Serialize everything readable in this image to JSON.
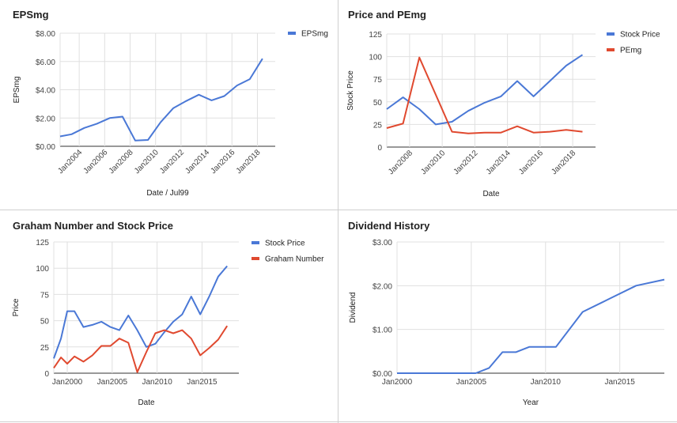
{
  "chart_data": [
    {
      "type": "line",
      "title": "EPSmg",
      "xlabel": "Date / Jul99",
      "ylabel": "EPSmg",
      "x_ticks": [
        "Jan2004",
        "Jan2006",
        "Jan2008",
        "Jan2010",
        "Jan2012",
        "Jan2014",
        "Jan2016",
        "Jan2018"
      ],
      "y_ticks": [
        "$0.00",
        "$2.00",
        "$4.00",
        "$6.00",
        "$8.00"
      ],
      "xlim": [
        2002.5,
        2019.4
      ],
      "ylim": [
        0,
        8
      ],
      "legend": "top-right",
      "colors": {
        "EPSmg": "#4a78d6"
      },
      "series": [
        {
          "name": "EPSmg",
          "color": "#4a78d6",
          "points": [
            [
              2002.5,
              0.7
            ],
            [
              2003.4,
              0.85
            ],
            [
              2004.4,
              1.3
            ],
            [
              2005.4,
              1.6
            ],
            [
              2006.4,
              2.0
            ],
            [
              2007.4,
              2.1
            ],
            [
              2008.4,
              0.4
            ],
            [
              2009.4,
              0.45
            ],
            [
              2010.4,
              1.7
            ],
            [
              2011.4,
              2.7
            ],
            [
              2012.4,
              3.2
            ],
            [
              2013.4,
              3.65
            ],
            [
              2014.4,
              3.25
            ],
            [
              2015.4,
              3.55
            ],
            [
              2016.4,
              4.3
            ],
            [
              2017.4,
              4.75
            ],
            [
              2018.4,
              6.2
            ]
          ]
        }
      ]
    },
    {
      "type": "line",
      "title": "Price and PEmg",
      "xlabel": "Date",
      "ylabel": "Stock Price",
      "x_ticks": [
        "Jan2008",
        "Jan2010",
        "Jan2012",
        "Jan2014",
        "Jan2016",
        "Jan2018"
      ],
      "y_ticks": [
        "0",
        "25",
        "50",
        "75",
        "100",
        "125"
      ],
      "xlim": [
        2006.6,
        2019.4
      ],
      "ylim": [
        0,
        125
      ],
      "legend": "top-right",
      "colors": {
        "Stock Price": "#4a78d6",
        "PEmg": "#e0492f"
      },
      "series": [
        {
          "name": "Stock Price",
          "color": "#4a78d6",
          "points": [
            [
              2006.6,
              42
            ],
            [
              2007.6,
              55
            ],
            [
              2008.6,
              42
            ],
            [
              2009.6,
              25
            ],
            [
              2010.6,
              28
            ],
            [
              2011.6,
              40
            ],
            [
              2012.6,
              49
            ],
            [
              2013.6,
              56
            ],
            [
              2014.6,
              73
            ],
            [
              2015.6,
              56
            ],
            [
              2016.6,
              73
            ],
            [
              2017.6,
              90
            ],
            [
              2018.6,
              102
            ]
          ]
        },
        {
          "name": "PEmg",
          "color": "#e0492f",
          "points": [
            [
              2006.6,
              21
            ],
            [
              2007.6,
              26
            ],
            [
              2008.6,
              99
            ],
            [
              2009.6,
              58
            ],
            [
              2010.6,
              17
            ],
            [
              2011.6,
              15
            ],
            [
              2012.6,
              16
            ],
            [
              2013.6,
              16
            ],
            [
              2014.6,
              23
            ],
            [
              2015.6,
              16
            ],
            [
              2016.6,
              17
            ],
            [
              2017.6,
              19
            ],
            [
              2018.6,
              17
            ]
          ]
        }
      ]
    },
    {
      "type": "line",
      "title": "Graham Number and Stock Price",
      "xlabel": "Date",
      "ylabel": "Price",
      "x_ticks": [
        "Jan2000",
        "Jan2005",
        "Jan2010",
        "Jan2015"
      ],
      "y_ticks": [
        "0",
        "25",
        "50",
        "75",
        "100",
        "125"
      ],
      "xlim": [
        1998.5,
        2019.1
      ],
      "ylim": [
        0,
        125
      ],
      "legend": "top-right",
      "colors": {
        "Stock Price": "#4a78d6",
        "Graham Number": "#e0492f"
      },
      "series": [
        {
          "name": "Stock Price",
          "color": "#4a78d6",
          "points": [
            [
              1998.5,
              14
            ],
            [
              1999.3,
              33
            ],
            [
              2000.0,
              59
            ],
            [
              2000.8,
              59
            ],
            [
              2001.8,
              44
            ],
            [
              2002.8,
              46
            ],
            [
              2003.8,
              49
            ],
            [
              2004.8,
              44
            ],
            [
              2005.8,
              41
            ],
            [
              2006.8,
              55
            ],
            [
              2007.8,
              41
            ],
            [
              2008.8,
              25
            ],
            [
              2009.8,
              28
            ],
            [
              2010.8,
              39
            ],
            [
              2011.8,
              49
            ],
            [
              2012.8,
              56
            ],
            [
              2013.8,
              73
            ],
            [
              2014.8,
              56
            ],
            [
              2015.8,
              73
            ],
            [
              2016.8,
              92
            ],
            [
              2017.8,
              102
            ]
          ]
        },
        {
          "name": "Graham Number",
          "color": "#e0492f",
          "points": [
            [
              1998.5,
              5
            ],
            [
              1999.3,
              15
            ],
            [
              2000.0,
              9
            ],
            [
              2000.8,
              16
            ],
            [
              2001.8,
              11
            ],
            [
              2002.8,
              17
            ],
            [
              2003.8,
              26
            ],
            [
              2004.8,
              26
            ],
            [
              2005.8,
              33
            ],
            [
              2006.8,
              29
            ],
            [
              2007.8,
              1
            ],
            [
              2008.8,
              20
            ],
            [
              2009.8,
              38
            ],
            [
              2010.8,
              41
            ],
            [
              2011.8,
              38
            ],
            [
              2012.8,
              41
            ],
            [
              2013.8,
              33
            ],
            [
              2014.8,
              17
            ],
            [
              2015.8,
              24
            ],
            [
              2016.8,
              32
            ],
            [
              2017.8,
              45
            ]
          ]
        }
      ]
    },
    {
      "type": "line",
      "title": "Dividend History",
      "xlabel": "Year",
      "ylabel": "Dividend",
      "x_ticks": [
        "Jan2000",
        "Jan2005",
        "Jan2010",
        "Jan2015"
      ],
      "y_ticks": [
        "$0.00",
        "$1.00",
        "$2.00",
        "$3.00"
      ],
      "xlim": [
        2000.0,
        2018.0
      ],
      "ylim": [
        0,
        3
      ],
      "colors": {
        "Dividend": "#4a78d6"
      },
      "series": [
        {
          "name": "",
          "color": "#4a78d6",
          "points": [
            [
              2000.0,
              0
            ],
            [
              2005.3,
              0
            ],
            [
              2006.2,
              0.12
            ],
            [
              2007.1,
              0.48
            ],
            [
              2008.0,
              0.48
            ],
            [
              2008.9,
              0.6
            ],
            [
              2009.8,
              0.6
            ],
            [
              2010.7,
              0.6
            ],
            [
              2012.5,
              1.4
            ],
            [
              2014.3,
              1.7
            ],
            [
              2016.1,
              2.0
            ],
            [
              2018.0,
              2.14
            ]
          ]
        }
      ]
    }
  ]
}
